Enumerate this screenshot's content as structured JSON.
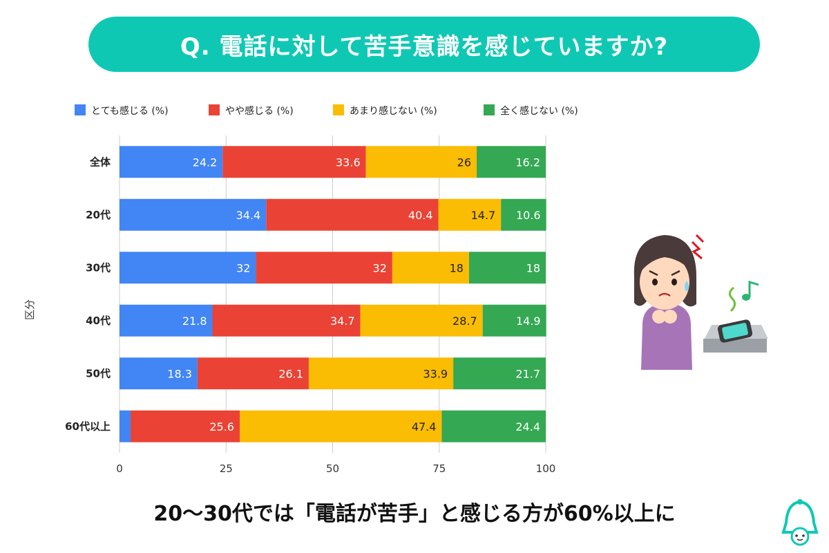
{
  "title": "Q. 電話に対して苦手意識を感じていますか?",
  "caption": "20〜30代では「電話が苦手」と感じる方が60%以上に",
  "colors": {
    "banner": "#0fc8b4",
    "blue": "#4285f4",
    "red": "#ea4335",
    "yellow": "#fbbc04",
    "green": "#34a853"
  },
  "illustration": {
    "icon": "anxious-woman-phone-ringing-icon",
    "music_note_icon": "music-note-icon"
  },
  "logo": {
    "icon": "bell-character-logo-icon"
  },
  "chart_data": {
    "type": "bar",
    "orientation": "horizontal",
    "stacked": true,
    "ylabel": "区分",
    "xlim": [
      0,
      100
    ],
    "xticks": [
      0,
      25,
      50,
      75,
      100
    ],
    "grid": true,
    "legend_position": "top",
    "categories": [
      "全体",
      "20代",
      "30代",
      "40代",
      "50代",
      "60代以上"
    ],
    "series": [
      {
        "name": "とても感じる (%)",
        "color": "#4285f4",
        "values": [
          24.2,
          34.4,
          32,
          21.8,
          18.3,
          2.6
        ]
      },
      {
        "name": "やや感じる (%)",
        "color": "#ea4335",
        "values": [
          33.6,
          40.4,
          32,
          34.7,
          26.1,
          25.6
        ]
      },
      {
        "name": "あまり感じない (%)",
        "color": "#fbbc04",
        "values": [
          26,
          14.7,
          18,
          28.7,
          33.9,
          47.4
        ]
      },
      {
        "name": "全く感じない (%)",
        "color": "#34a853",
        "values": [
          16.2,
          10.6,
          18,
          14.9,
          21.7,
          24.4
        ]
      }
    ]
  }
}
